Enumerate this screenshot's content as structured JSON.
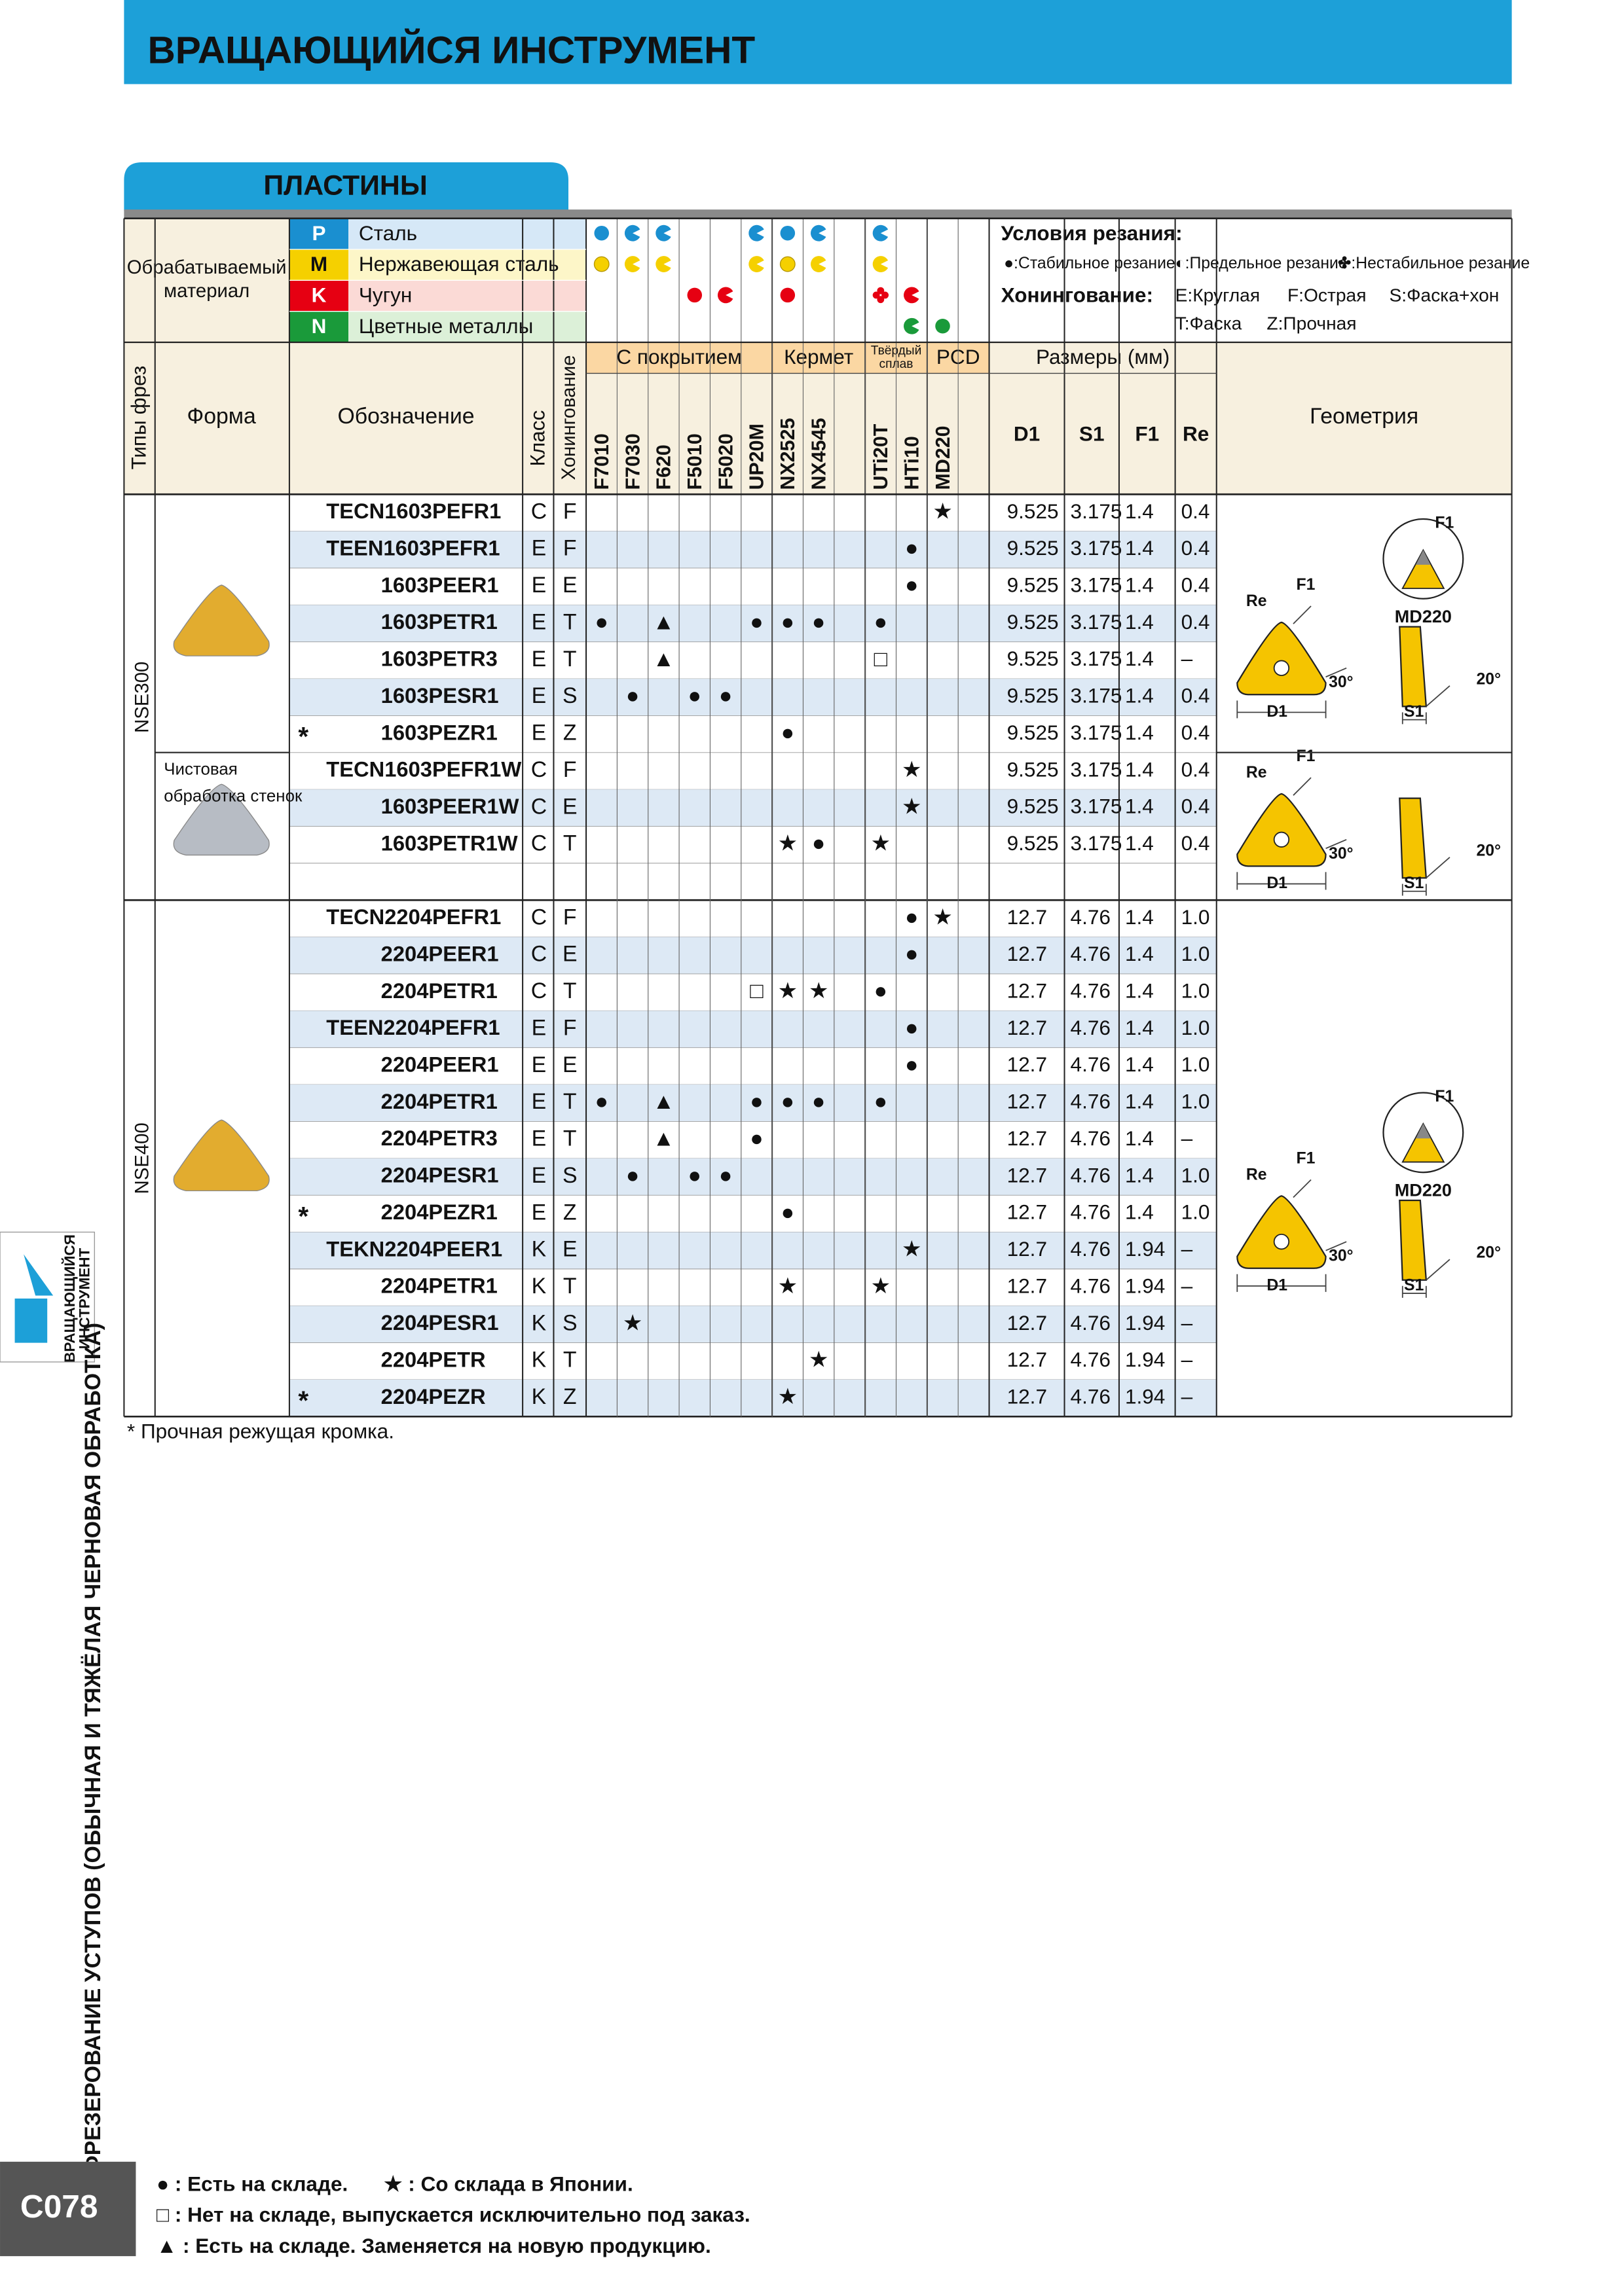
{
  "header": {
    "title": "ВРАЩАЮЩИЙСЯ ИНСТРУМЕНТ",
    "section": "ПЛАСТИНЫ"
  },
  "materials": {
    "label": [
      "Обрабатываемый",
      "материал"
    ],
    "rows": [
      {
        "code": "P",
        "name": "Сталь"
      },
      {
        "code": "M",
        "name": "Нержавеющая сталь"
      },
      {
        "code": "K",
        "name": "Чугун"
      },
      {
        "code": "N",
        "name": "Цветные металлы"
      }
    ]
  },
  "legend": {
    "cond_title": "Условия резания:",
    "cond": [
      "●:Стабильное резание",
      "◐:Предельное резание",
      "✤:Нестабильное резание"
    ],
    "hon_title": "Хонингование:",
    "hon": [
      "E:Круглая",
      "F:Острая",
      "S:Фаска+хон",
      "T:Фаска",
      "Z:Прочная"
    ]
  },
  "columns": {
    "types": "Типы фрез",
    "form": "Форма",
    "designation": "Обозначение",
    "class": "Класс",
    "honing": "Хонингование",
    "groups": [
      "С покрытием",
      "Кермет",
      [
        "Твёрдый",
        "сплав"
      ],
      "PCD"
    ],
    "grades": [
      "F7010",
      "F7030",
      "F620",
      "F5010",
      "F5020",
      "UP20M",
      "NX2525",
      "NX4545",
      null,
      "UTi20T",
      "HTi10",
      "MD220",
      null
    ],
    "dims_title": "Размеры (мм)",
    "dims": [
      "D1",
      "S1",
      "F1",
      "Re"
    ],
    "geometry": "Геометрия"
  },
  "groups": [
    {
      "type": "NSE300",
      "sections": [
        {
          "geometry": {
            "re": "Re",
            "f1": "F1",
            "a30": "30°",
            "a20": "20°",
            "d1": "D1",
            "s1": "S1",
            "md_f1": "F1",
            "md": "MD220"
          },
          "rows": [
            {
              "code": "TECN1603PEFR1",
              "cls": "C",
              "hon": "F",
              "marks": [
                null,
                null,
                null,
                null,
                null,
                null,
                null,
                null,
                null,
                null,
                null,
                "★",
                null
              ],
              "dims": [
                "9.525",
                "3.175",
                "1.4",
                "0.4"
              ]
            },
            {
              "code": "TEEN1603PEFR1",
              "cls": "E",
              "hon": "F",
              "marks": [
                null,
                null,
                null,
                null,
                null,
                null,
                null,
                null,
                null,
                null,
                "●",
                null,
                null
              ],
              "dims": [
                "9.525",
                "3.175",
                "1.4",
                "0.4"
              ]
            },
            {
              "code": "1603PEER1",
              "cls": "E",
              "hon": "E",
              "marks": [
                null,
                null,
                null,
                null,
                null,
                null,
                null,
                null,
                null,
                null,
                "●",
                null,
                null
              ],
              "dims": [
                "9.525",
                "3.175",
                "1.4",
                "0.4"
              ]
            },
            {
              "code": "1603PETR1",
              "cls": "E",
              "hon": "T",
              "marks": [
                "●",
                null,
                "▲",
                null,
                null,
                "●",
                "●",
                "●",
                null,
                "●",
                null,
                null,
                null
              ],
              "dims": [
                "9.525",
                "3.175",
                "1.4",
                "0.4"
              ]
            },
            {
              "code": "1603PETR3",
              "cls": "E",
              "hon": "T",
              "marks": [
                null,
                null,
                "▲",
                null,
                null,
                null,
                null,
                null,
                null,
                "□",
                null,
                null,
                null
              ],
              "dims": [
                "9.525",
                "3.175",
                "1.4",
                "–"
              ]
            },
            {
              "code": "1603PESR1",
              "cls": "E",
              "hon": "S",
              "marks": [
                null,
                "●",
                null,
                "●",
                "●",
                null,
                null,
                null,
                null,
                null,
                null,
                null,
                null
              ],
              "dims": [
                "9.525",
                "3.175",
                "1.4",
                "0.4"
              ]
            },
            {
              "star": "*",
              "code": "1603PEZR1",
              "cls": "E",
              "hon": "Z",
              "marks": [
                null,
                null,
                null,
                null,
                null,
                null,
                "●",
                null,
                null,
                null,
                null,
                null,
                null
              ],
              "dims": [
                "9.525",
                "3.175",
                "1.4",
                "0.4"
              ]
            }
          ]
        },
        {
          "note": [
            "Чистовая",
            "обработка стенок"
          ],
          "geometry": {
            "re": "Re",
            "f1": "F1",
            "a30": "30°",
            "a20": "20°",
            "d1": "D1",
            "s1": "S1"
          },
          "rows": [
            {
              "code": "TECN1603PEFR1W",
              "cls": "C",
              "hon": "F",
              "marks": [
                null,
                null,
                null,
                null,
                null,
                null,
                null,
                null,
                null,
                null,
                "★",
                null,
                null
              ],
              "dims": [
                "9.525",
                "3.175",
                "1.4",
                "0.4"
              ]
            },
            {
              "code": "1603PEER1W",
              "cls": "C",
              "hon": "E",
              "marks": [
                null,
                null,
                null,
                null,
                null,
                null,
                null,
                null,
                null,
                null,
                "★",
                null,
                null
              ],
              "dims": [
                "9.525",
                "3.175",
                "1.4",
                "0.4"
              ]
            },
            {
              "code": "1603PETR1W",
              "cls": "C",
              "hon": "T",
              "marks": [
                null,
                null,
                null,
                null,
                null,
                null,
                "★",
                "●",
                null,
                "★",
                null,
                null,
                null
              ],
              "dims": [
                "9.525",
                "3.175",
                "1.4",
                "0.4"
              ]
            }
          ]
        }
      ]
    },
    {
      "type": "NSE400",
      "sections": [
        {
          "geometry": {
            "re": "Re",
            "f1": "F1",
            "a30": "30°",
            "a20": "20°",
            "d1": "D1",
            "s1": "S1",
            "md_f1": "F1",
            "md": "MD220"
          },
          "rows": [
            {
              "code": "TECN2204PEFR1",
              "cls": "C",
              "hon": "F",
              "marks": [
                null,
                null,
                null,
                null,
                null,
                null,
                null,
                null,
                null,
                null,
                "●",
                "★",
                null
              ],
              "dims": [
                "12.7",
                "4.76",
                "1.4",
                "1.0"
              ]
            },
            {
              "code": "2204PEER1",
              "cls": "C",
              "hon": "E",
              "marks": [
                null,
                null,
                null,
                null,
                null,
                null,
                null,
                null,
                null,
                null,
                "●",
                null,
                null
              ],
              "dims": [
                "12.7",
                "4.76",
                "1.4",
                "1.0"
              ]
            },
            {
              "code": "2204PETR1",
              "cls": "C",
              "hon": "T",
              "marks": [
                null,
                null,
                null,
                null,
                null,
                "□",
                "★",
                "★",
                null,
                "●",
                null,
                null,
                null
              ],
              "dims": [
                "12.7",
                "4.76",
                "1.4",
                "1.0"
              ]
            },
            {
              "code": "TEEN2204PEFR1",
              "cls": "E",
              "hon": "F",
              "marks": [
                null,
                null,
                null,
                null,
                null,
                null,
                null,
                null,
                null,
                null,
                "●",
                null,
                null
              ],
              "dims": [
                "12.7",
                "4.76",
                "1.4",
                "1.0"
              ]
            },
            {
              "code": "2204PEER1",
              "cls": "E",
              "hon": "E",
              "marks": [
                null,
                null,
                null,
                null,
                null,
                null,
                null,
                null,
                null,
                null,
                "●",
                null,
                null
              ],
              "dims": [
                "12.7",
                "4.76",
                "1.4",
                "1.0"
              ]
            },
            {
              "code": "2204PETR1",
              "cls": "E",
              "hon": "T",
              "marks": [
                "●",
                null,
                "▲",
                null,
                null,
                "●",
                "●",
                "●",
                null,
                "●",
                null,
                null,
                null
              ],
              "dims": [
                "12.7",
                "4.76",
                "1.4",
                "1.0"
              ]
            },
            {
              "code": "2204PETR3",
              "cls": "E",
              "hon": "T",
              "marks": [
                null,
                null,
                "▲",
                null,
                null,
                "●",
                null,
                null,
                null,
                null,
                null,
                null,
                null
              ],
              "dims": [
                "12.7",
                "4.76",
                "1.4",
                "–"
              ]
            },
            {
              "code": "2204PESR1",
              "cls": "E",
              "hon": "S",
              "marks": [
                null,
                "●",
                null,
                "●",
                "●",
                null,
                null,
                null,
                null,
                null,
                null,
                null,
                null
              ],
              "dims": [
                "12.7",
                "4.76",
                "1.4",
                "1.0"
              ]
            },
            {
              "star": "*",
              "code": "2204PEZR1",
              "cls": "E",
              "hon": "Z",
              "marks": [
                null,
                null,
                null,
                null,
                null,
                null,
                "●",
                null,
                null,
                null,
                null,
                null,
                null
              ],
              "dims": [
                "12.7",
                "4.76",
                "1.4",
                "1.0"
              ]
            },
            {
              "code": "TEKN2204PEER1",
              "cls": "K",
              "hon": "E",
              "marks": [
                null,
                null,
                null,
                null,
                null,
                null,
                null,
                null,
                null,
                null,
                "★",
                null,
                null
              ],
              "dims": [
                "12.7",
                "4.76",
                "1.94",
                "–"
              ]
            },
            {
              "code": "2204PETR1",
              "cls": "K",
              "hon": "T",
              "marks": [
                null,
                null,
                null,
                null,
                null,
                null,
                "★",
                null,
                null,
                "★",
                null,
                null,
                null
              ],
              "dims": [
                "12.7",
                "4.76",
                "1.94",
                "–"
              ]
            },
            {
              "code": "2204PESR1",
              "cls": "K",
              "hon": "S",
              "marks": [
                null,
                "★",
                null,
                null,
                null,
                null,
                null,
                null,
                null,
                null,
                null,
                null,
                null
              ],
              "dims": [
                "12.7",
                "4.76",
                "1.94",
                "–"
              ]
            },
            {
              "code": "2204PETR",
              "cls": "K",
              "hon": "T",
              "marks": [
                null,
                null,
                null,
                null,
                null,
                null,
                null,
                "★",
                null,
                null,
                null,
                null,
                null
              ],
              "dims": [
                "12.7",
                "4.76",
                "1.94",
                "–"
              ]
            },
            {
              "star": "*",
              "code": "2204PEZR",
              "cls": "K",
              "hon": "Z",
              "marks": [
                null,
                null,
                null,
                null,
                null,
                null,
                "★",
                null,
                null,
                null,
                null,
                null,
                null
              ],
              "dims": [
                "12.7",
                "4.76",
                "1.94",
                "–"
              ]
            }
          ]
        }
      ]
    }
  ],
  "footnote": "* Прочная режущая кромка.",
  "footer": [
    "● : Есть на складе.",
    "★ : Со склада в Японии.",
    "□ : Нет на складе, выпускается исключительно под заказ.",
    "▲ : Есть на складе. Заменяется на новую продукцию."
  ],
  "side": {
    "title": "ФРЕЗЕРОВАНИЕ УСТУПОВ (ОБЫЧНАЯ И ТЯЖЁЛАЯ ЧЕРНОВАЯ ОБРАБОТКА)",
    "tab": [
      "ВРАЩАЮЩИЙСЯ",
      "ИНСТРУМЕНТ"
    ],
    "page": "C078"
  }
}
